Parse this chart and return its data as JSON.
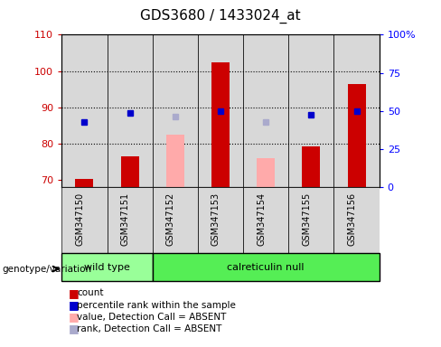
{
  "title": "GDS3680 / 1433024_at",
  "samples": [
    "GSM347150",
    "GSM347151",
    "GSM347152",
    "GSM347153",
    "GSM347154",
    "GSM347155",
    "GSM347156"
  ],
  "count_values": [
    70.3,
    76.5,
    null,
    102.5,
    null,
    79.2,
    96.5
  ],
  "count_absent_values": [
    null,
    null,
    82.5,
    null,
    76.0,
    null,
    null
  ],
  "rank_values": [
    86.0,
    88.5,
    null,
    89.0,
    null,
    88.0,
    89.0
  ],
  "rank_absent_values": [
    null,
    null,
    87.5,
    null,
    86.0,
    null,
    null
  ],
  "ylim_left": [
    68,
    110
  ],
  "ylim_right": [
    0,
    100
  ],
  "yticks_left": [
    70,
    80,
    90,
    100,
    110
  ],
  "ytick_labels_left": [
    "70",
    "80",
    "90",
    "100",
    "110"
  ],
  "yticks_right": [
    0,
    25,
    50,
    75,
    100
  ],
  "ytick_labels_right": [
    "0",
    "25",
    "50",
    "75",
    "100%"
  ],
  "groups": [
    {
      "label": "wild type",
      "start": 0,
      "end": 2,
      "color": "#99ff99"
    },
    {
      "label": "calreticulin null",
      "start": 2,
      "end": 7,
      "color": "#55ee55"
    }
  ],
  "bar_width": 0.4,
  "color_count": "#cc0000",
  "color_count_absent": "#ffaaaa",
  "color_rank": "#0000cc",
  "color_rank_absent": "#aaaacc",
  "bg_color": "#d8d8d8",
  "grid_lines": [
    80,
    90,
    100
  ],
  "legend_items": [
    {
      "label": "count",
      "color": "#cc0000"
    },
    {
      "label": "percentile rank within the sample",
      "color": "#0000cc"
    },
    {
      "label": "value, Detection Call = ABSENT",
      "color": "#ffaaaa"
    },
    {
      "label": "rank, Detection Call = ABSENT",
      "color": "#aaaacc"
    }
  ]
}
